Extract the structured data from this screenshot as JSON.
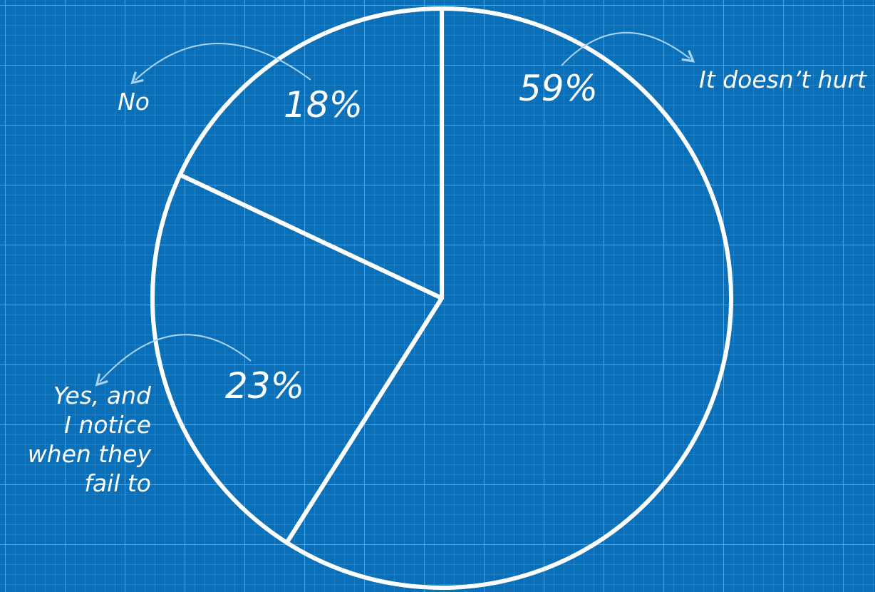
{
  "chart_data": {
    "type": "pie",
    "categories": [
      "It doesn’t hurt",
      "Yes, and I notice when they fail to",
      "No"
    ],
    "values": [
      59,
      23,
      18
    ],
    "value_labels": [
      "59%",
      "23%",
      "18%"
    ],
    "label_lines": [
      [
        "It doesn’t hurt"
      ],
      [
        "Yes, and",
        "I notice",
        "when they",
        "fail to"
      ],
      [
        "No"
      ]
    ],
    "start": "12 o'clock",
    "direction": "clockwise",
    "colors": {
      "background": "#0a6fb7",
      "grid": "#78b9eb",
      "lines": "#ffffff",
      "arrows": "#a8d4f5"
    }
  }
}
